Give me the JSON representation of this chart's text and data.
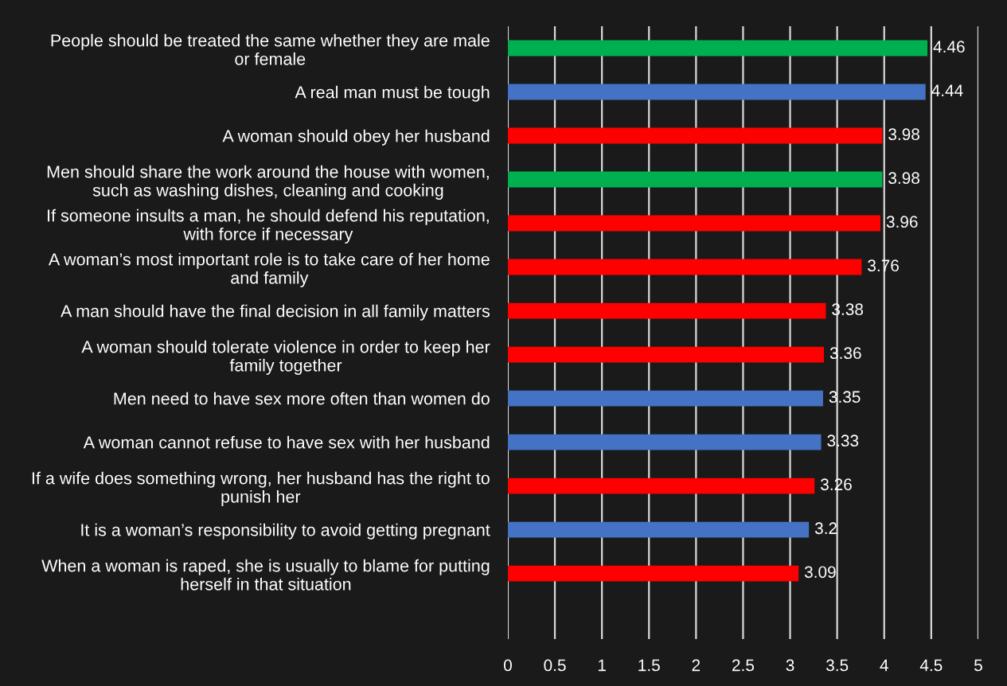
{
  "chart_data": {
    "type": "bar",
    "orientation": "horizontal",
    "categories": [
      "People should be treated the same whether they are male\nor female",
      "A real man must be tough",
      "A woman should obey her husband",
      "Men should share the work around the house with women,\nsuch as washing dishes, cleaning and cooking",
      "If someone insults a man, he should defend his reputation,\nwith force if necessary",
      "A woman’s most important role is to take care of her home\nand family",
      "A man should have the final decision in all family matters",
      "A woman should tolerate violence in order to keep her\nfamily together",
      "Men need to have sex more often than women do",
      "A woman cannot refuse to have sex with her husband",
      "If a wife does something wrong, her husband has the right to\npunish her",
      "It is a woman’s responsibility to avoid getting pregnant",
      "When a woman is raped, she is usually to blame for putting\nherself in that situation"
    ],
    "values": [
      4.46,
      4.44,
      3.98,
      3.98,
      3.96,
      3.76,
      3.38,
      3.36,
      3.35,
      3.33,
      3.26,
      3.2,
      3.09
    ],
    "colors": [
      "#00b050",
      "#4472c4",
      "#ff0000",
      "#00b050",
      "#ff0000",
      "#ff0000",
      "#ff0000",
      "#ff0000",
      "#4472c4",
      "#4472c4",
      "#ff0000",
      "#4472c4",
      "#ff0000"
    ],
    "xlim": [
      0,
      5
    ],
    "xticks": [
      0,
      0.5,
      1,
      1.5,
      2,
      2.5,
      3,
      3.5,
      4,
      4.5,
      5
    ],
    "grid": "x",
    "data_labels": true
  }
}
